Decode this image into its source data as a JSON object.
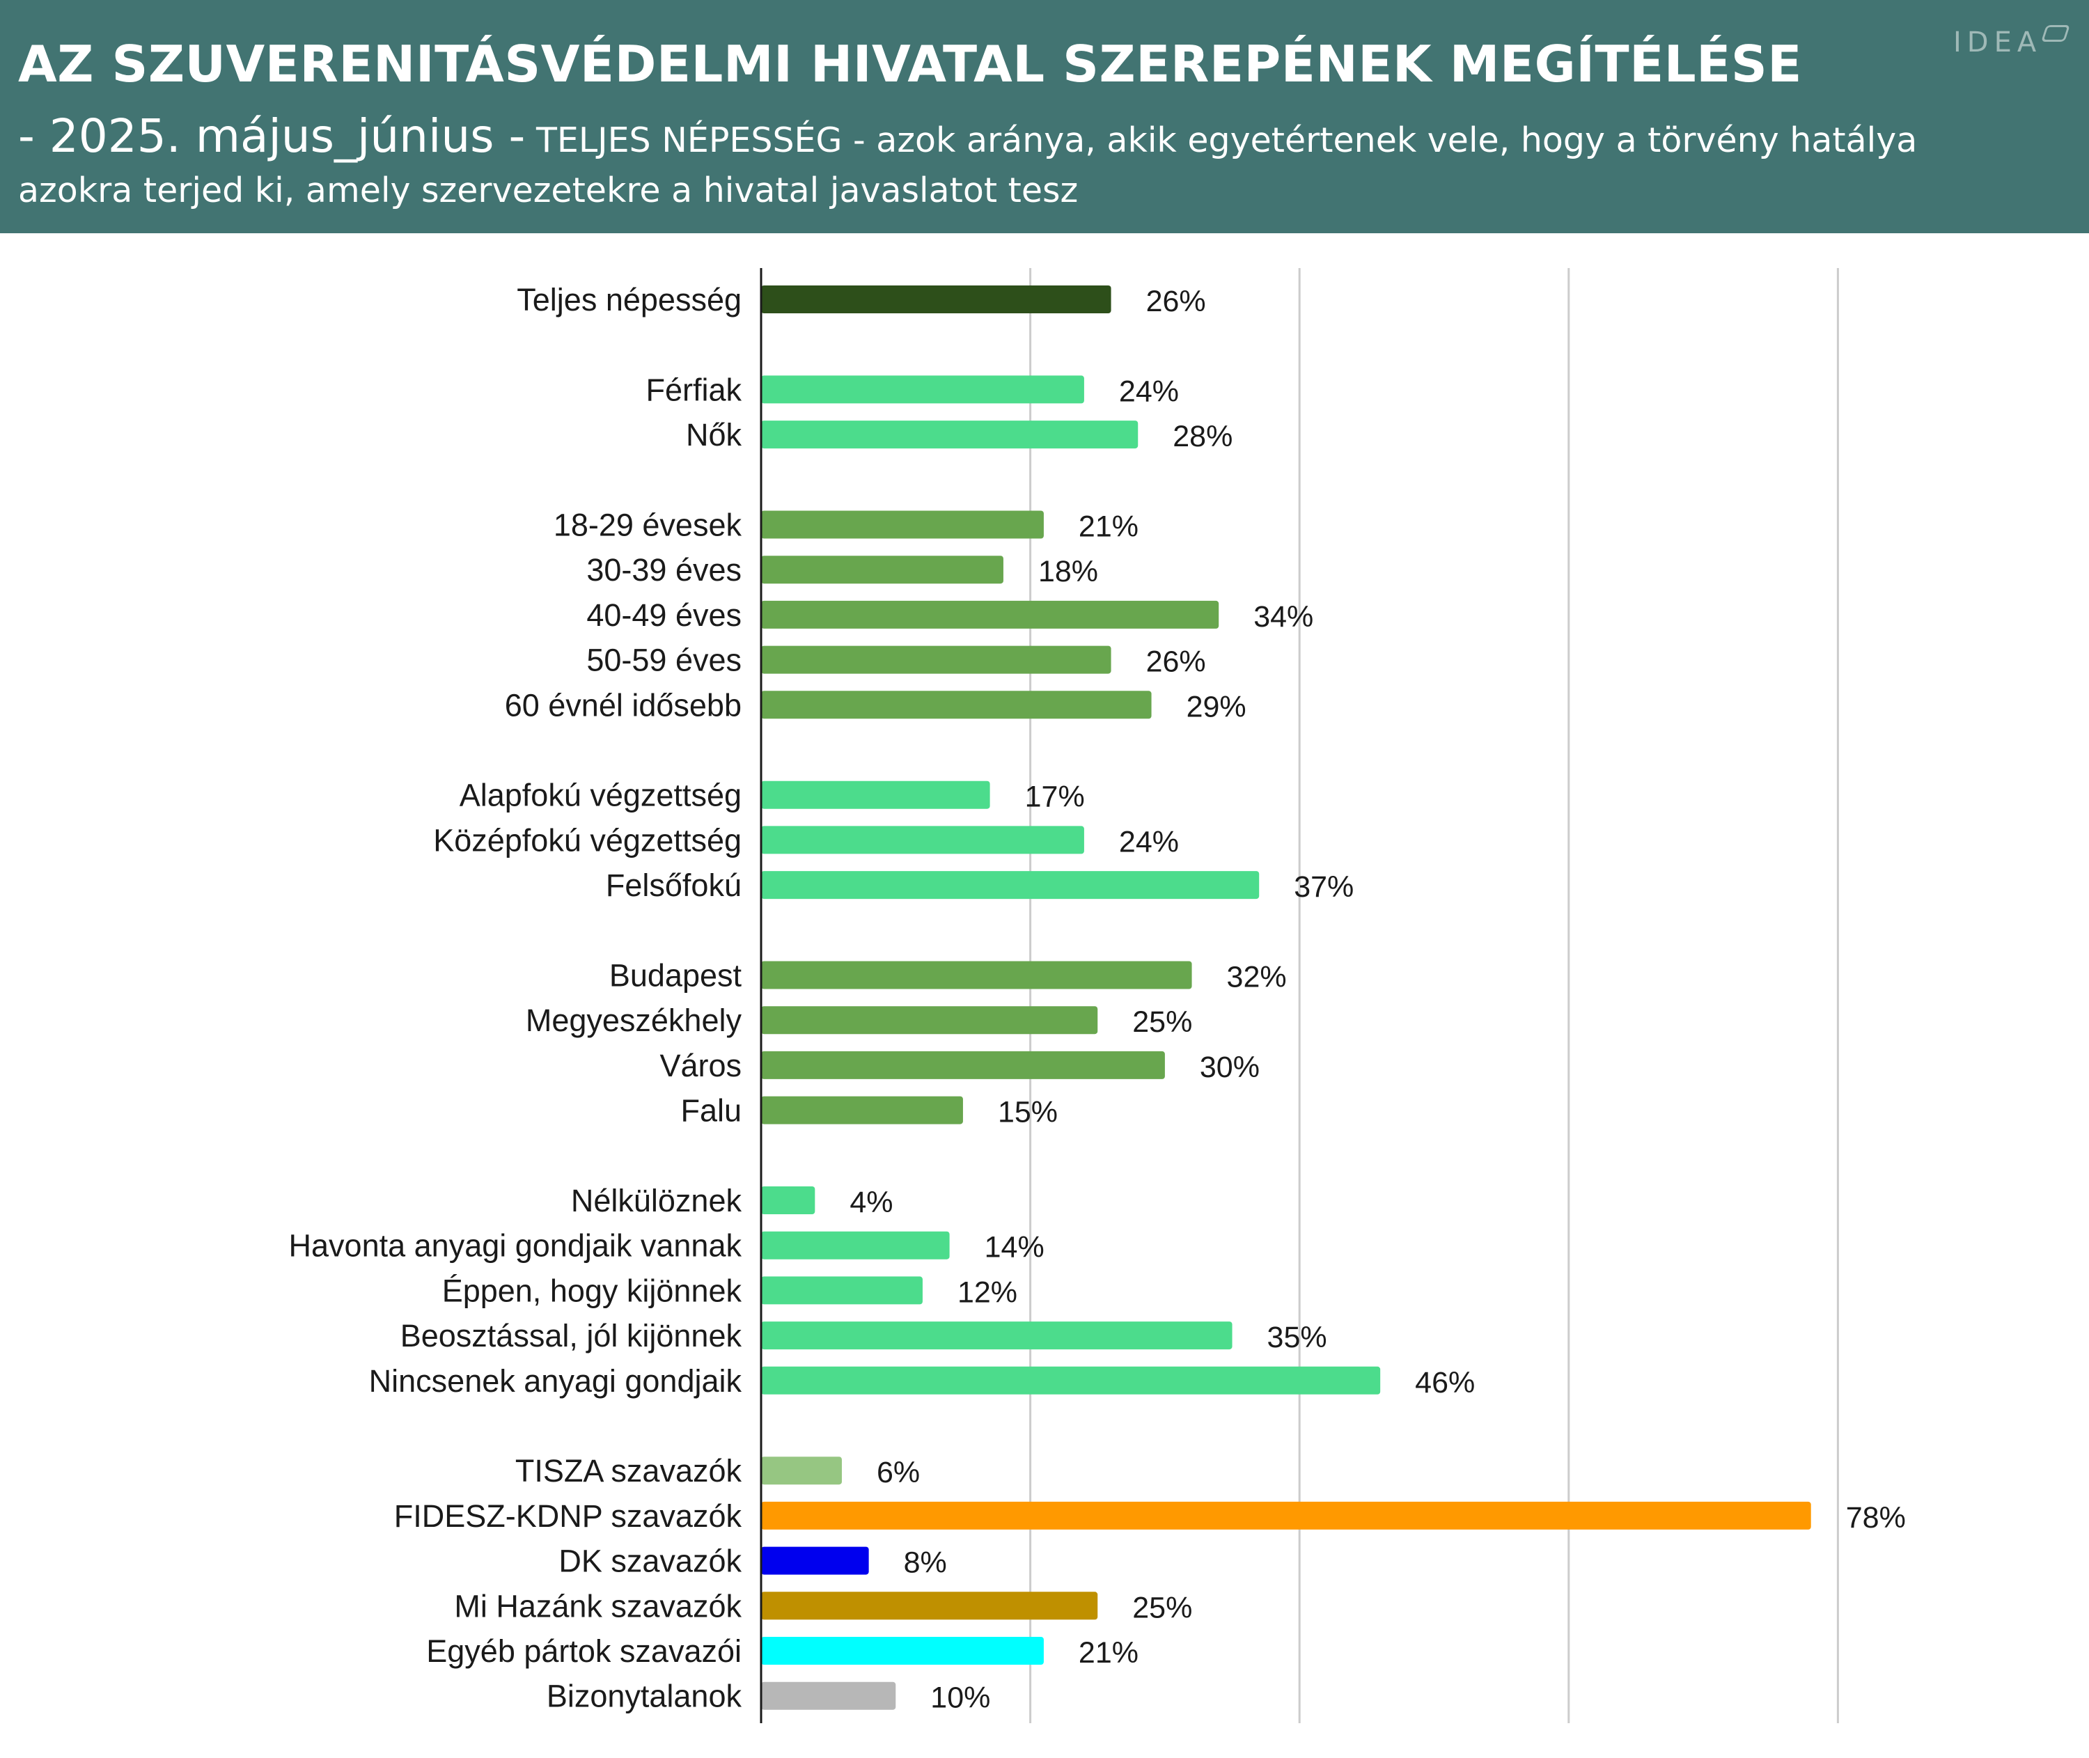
{
  "header": {
    "title": "AZ SZUVERENITÁSVÉDELMI HIVATAL SZEREPÉNEK MEGÍTÉLÉSE",
    "subtitle_date": "- 2025. május_június -",
    "subtitle_text": "TELJES NÉPESSÉG  - azok aránya, akik egyetértenek vele, hogy a törvény hatálya azokra terjed ki, amely szervezetekre a hivatal javaslatot tesz",
    "logo": "IDEA"
  },
  "colors": {
    "header_bg": "#427472",
    "total": "#2d4f1a",
    "light_green": "#4cdc8c",
    "mid_green": "#68a64e",
    "tisza": "#96c682",
    "fidesz": "#ff9900",
    "dk": "#0000ee",
    "mihazank": "#bf9000",
    "egyeb": "#00ffff",
    "bizonytalan": "#b7b7b7",
    "grid": "#cccccc"
  },
  "chart_data": {
    "type": "bar",
    "orientation": "horizontal",
    "xlim": [
      0,
      100
    ],
    "grid": true,
    "categories": [
      "Teljes népesség",
      "Férfiak",
      "Nők",
      "18-29 évesek",
      "30-39 éves",
      "40-49 éves",
      "50-59 éves",
      "60 évnél idősebb",
      "Alapfokú végzettség",
      "Középfokú végzettség",
      "Felsőfokú",
      "Budapest",
      "Megyeszékhely",
      "Város",
      "Falu",
      "Nélkülöznek",
      "Havonta anyagi gondjaik vannak",
      "Éppen, hogy kijönnek",
      "Beosztással, jól kijönnek",
      "Nincsenek anyagi gondjaik",
      "TISZA szavazók",
      "FIDESZ-KDNP szavazók",
      "DK szavazók",
      "Mi Hazánk szavazók",
      "Egyéb pártok szavazói",
      "Bizonytalanok"
    ],
    "values": [
      26,
      24,
      28,
      21,
      18,
      34,
      26,
      29,
      17,
      24,
      37,
      32,
      25,
      30,
      15,
      4,
      14,
      12,
      35,
      46,
      6,
      78,
      8,
      25,
      21,
      10
    ],
    "value_labels": [
      "26%",
      "24%",
      "28%",
      "21%",
      "18%",
      "34%",
      "26%",
      "29%",
      "17%",
      "24%",
      "37%",
      "32%",
      "25%",
      "30%",
      "15%",
      "4%",
      "14%",
      "12%",
      "35%",
      "46%",
      "6%",
      "78%",
      "8%",
      "25%",
      "21%",
      "10%"
    ],
    "groups": [
      0,
      1,
      1,
      2,
      2,
      2,
      2,
      2,
      3,
      3,
      3,
      4,
      4,
      4,
      4,
      5,
      5,
      5,
      5,
      5,
      6,
      6,
      6,
      6,
      6,
      6
    ],
    "bar_colors": [
      "#2d4f1a",
      "#4cdc8c",
      "#4cdc8c",
      "#68a64e",
      "#68a64e",
      "#68a64e",
      "#68a64e",
      "#68a64e",
      "#4cdc8c",
      "#4cdc8c",
      "#4cdc8c",
      "#68a64e",
      "#68a64e",
      "#68a64e",
      "#68a64e",
      "#4cdc8c",
      "#4cdc8c",
      "#4cdc8c",
      "#4cdc8c",
      "#4cdc8c",
      "#96c682",
      "#ff9900",
      "#0000ee",
      "#bf9000",
      "#00ffff",
      "#b7b7b7"
    ]
  }
}
